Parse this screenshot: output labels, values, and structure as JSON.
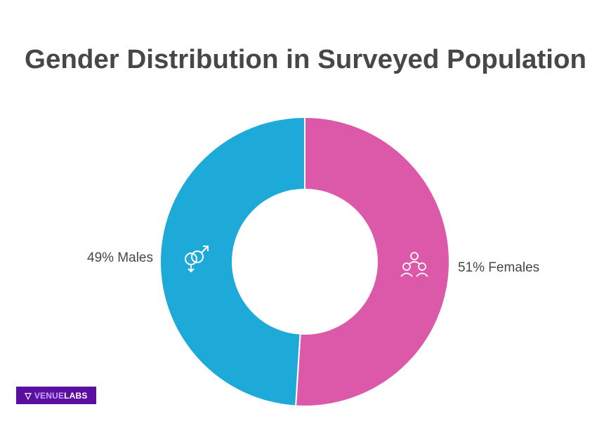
{
  "chart_data": {
    "type": "pie",
    "variant": "donut",
    "title": "Gender Distribution in Surveyed Population",
    "slices": [
      {
        "label": "51% Females",
        "value": 51,
        "color": "#dc58a8",
        "icon": "women-group-icon"
      },
      {
        "label": "49% Males",
        "value": 49,
        "color": "#1eaad9",
        "icon": "gender-symbols-icon"
      }
    ],
    "start": "top",
    "direction": "clockwise"
  },
  "logo": {
    "part1": "VENUE",
    "part2": "LABS"
  }
}
